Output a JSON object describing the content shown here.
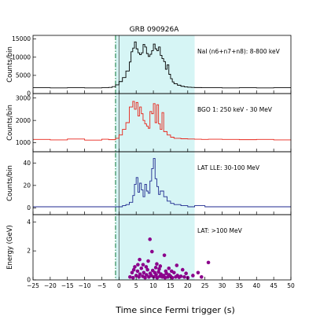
{
  "chart_data": {
    "type": "line",
    "title": "GRB 090926A",
    "xlabel": "Time since Fermi trigger (s)",
    "xlim": [
      -25,
      50
    ],
    "xticks": [
      -25,
      -20,
      -15,
      -10,
      -5,
      0,
      5,
      10,
      15,
      20,
      25,
      30,
      35,
      40,
      45,
      50
    ],
    "shaded_interval": [
      -1,
      22
    ],
    "trigger_line_x": 0,
    "highlight_line_x": -1,
    "colors": {
      "shade": "#d6f5f5",
      "dashed_line": "#2e8b57",
      "nai": "#000000",
      "bgo": "#e8251a",
      "lle": "#1f2a8f",
      "lat": "#8b008b"
    },
    "panels": [
      {
        "id": "nai",
        "label": "NaI (n6+n7+n8): 8-800 keV",
        "ylabel": "Counts/bin",
        "ylim": [
          0,
          16000
        ],
        "yticks": [
          0,
          5000,
          10000,
          15000
        ],
        "series": [
          {
            "x": [
              -25,
              -20,
              -15,
              -10,
              -5,
              -3,
              -2,
              -1,
              0,
              1,
              2,
              3,
              3.5,
              4,
              4.5,
              5,
              5.5,
              6,
              6.5,
              7,
              7.5,
              8,
              8.5,
              9,
              9.5,
              10,
              10.5,
              11,
              11.5,
              12,
              12.5,
              13,
              13.5,
              14,
              14.5,
              15,
              15.5,
              16,
              17,
              18,
              19,
              20,
              21,
              22,
              24,
              26,
              30,
              35,
              40,
              45,
              50
            ],
            "y": [
              1600,
              1550,
              1600,
              1550,
              1600,
              1700,
              1900,
              2400,
              3300,
              4400,
              6200,
              8700,
              11500,
              12500,
              14200,
              12300,
              11200,
              10700,
              11200,
              13500,
              12800,
              11000,
              10200,
              10800,
              11800,
              13600,
              12300,
              11800,
              12800,
              10500,
              9600,
              8800,
              6700,
              7900,
              5300,
              4100,
              3200,
              2700,
              2300,
              2000,
              1850,
              1750,
              1700,
              1650,
              1600,
              1600,
              1550,
              1600,
              1550,
              1600,
              1600
            ]
          }
        ]
      },
      {
        "id": "bgo",
        "label": "BGO 1: 250 keV - 30 MeV",
        "ylabel": "Counts/bin",
        "ylim": [
          600,
          3200
        ],
        "yticks": [
          1000,
          2000,
          3000
        ],
        "series": [
          {
            "x": [
              -25,
              -20,
              -15,
              -10,
              -5,
              -3,
              -1,
              0,
              1,
              2,
              3,
              4,
              4.5,
              5,
              5.5,
              6,
              6.5,
              7,
              7.5,
              8,
              8.5,
              9,
              9.5,
              10,
              10.5,
              11,
              11.5,
              12,
              12.5,
              13,
              14,
              15,
              16,
              18,
              20,
              22,
              24,
              26,
              30,
              35,
              40,
              45,
              50
            ],
            "y": [
              1150,
              1130,
              1170,
              1120,
              1160,
              1140,
              1200,
              1350,
              1600,
              1900,
              2600,
              2850,
              2500,
              2800,
              2200,
              2600,
              2300,
              2000,
              1850,
              1750,
              1650,
              2400,
              2300,
              2750,
              1900,
              2700,
              1850,
              1600,
              2350,
              1500,
              1350,
              1250,
              1200,
              1180,
              1170,
              1160,
              1150,
              1160,
              1150,
              1140,
              1150,
              1130,
              1140
            ]
          }
        ]
      },
      {
        "id": "lle",
        "label": "LAT LLE: 30-100 MeV",
        "ylabel": "Counts/bin",
        "ylim": [
          -6,
          50
        ],
        "yticks": [
          0,
          20,
          40
        ],
        "series": [
          {
            "x": [
              -25,
              -20,
              -15,
              -10,
              -5,
              -2,
              0,
              1,
              2,
              3,
              4,
              4.5,
              5,
              5.5,
              6,
              6.5,
              7,
              7.5,
              8,
              8.5,
              9,
              9.5,
              10,
              10.5,
              11,
              11.5,
              12,
              13,
              14,
              15,
              16,
              18,
              20,
              22,
              25,
              30,
              35,
              40,
              45,
              50
            ],
            "y": [
              1,
              1,
              1,
              1,
              1,
              1,
              1,
              2,
              3,
              5,
              11,
              21,
              27,
              14,
              22,
              16,
              10,
              21,
              15,
              13,
              24,
              35,
              44,
              26,
              19,
              12,
              15,
              10,
              6,
              4,
              3,
              2,
              1,
              2,
              1,
              1,
              1,
              1,
              1,
              1
            ]
          }
        ]
      },
      {
        "id": "lat",
        "label": "LAT: >100 MeV",
        "ylabel": "Energy (GeV)",
        "ylim": [
          0,
          4.5
        ],
        "yticks": [
          0,
          2,
          4
        ],
        "type": "scatter",
        "points": [
          [
            3.2,
            0.2
          ],
          [
            3.8,
            0.5
          ],
          [
            4.1,
            0.15
          ],
          [
            4.6,
            0.9
          ],
          [
            5.0,
            0.3
          ],
          [
            5.4,
            0.6
          ],
          [
            5.8,
            0.2
          ],
          [
            6.1,
            0.4
          ],
          [
            6.5,
            0.8
          ],
          [
            6.9,
            0.25
          ],
          [
            7.2,
            0.5
          ],
          [
            7.6,
            0.15
          ],
          [
            8.0,
            0.35
          ],
          [
            8.3,
            0.7
          ],
          [
            8.7,
            0.2
          ],
          [
            9.1,
            0.45
          ],
          [
            9.4,
            0.3
          ],
          [
            9.8,
            0.65
          ],
          [
            10.1,
            0.2
          ],
          [
            10.4,
            0.5
          ],
          [
            10.8,
            0.35
          ],
          [
            11.1,
            0.15
          ],
          [
            11.5,
            0.55
          ],
          [
            11.9,
            0.25
          ],
          [
            12.2,
            0.4
          ],
          [
            12.6,
            0.2
          ],
          [
            13.0,
            0.3
          ],
          [
            13.4,
            0.15
          ],
          [
            13.8,
            0.45
          ],
          [
            14.2,
            0.2
          ],
          [
            14.6,
            0.35
          ],
          [
            15.0,
            0.25
          ],
          [
            15.5,
            0.15
          ],
          [
            16.0,
            0.5
          ],
          [
            16.5,
            0.2
          ],
          [
            17.0,
            0.3
          ],
          [
            17.5,
            0.18
          ],
          [
            18.0,
            0.25
          ],
          [
            19.0,
            0.2
          ],
          [
            20.0,
            0.15
          ],
          [
            21.5,
            0.3
          ],
          [
            24.0,
            0.2
          ],
          [
            26.0,
            1.2
          ],
          [
            23.0,
            0.5
          ],
          [
            9.0,
            2.8
          ],
          [
            9.6,
            1.95
          ],
          [
            13.2,
            1.7
          ],
          [
            11.0,
            1.1
          ],
          [
            6.0,
            1.4
          ],
          [
            16.8,
            1.0
          ],
          [
            8.5,
            1.3
          ],
          [
            12.0,
            0.95
          ],
          [
            7.0,
            1.05
          ],
          [
            14.5,
            0.8
          ],
          [
            18.5,
            0.7
          ],
          [
            5.5,
            1.05
          ],
          [
            10.7,
            0.85
          ],
          [
            15.3,
            0.6
          ],
          [
            4.3,
            0.7
          ],
          [
            19.5,
            0.45
          ],
          [
            11.7,
            0.75
          ],
          [
            13.6,
            0.6
          ],
          [
            7.9,
            0.9
          ]
        ]
      }
    ]
  }
}
